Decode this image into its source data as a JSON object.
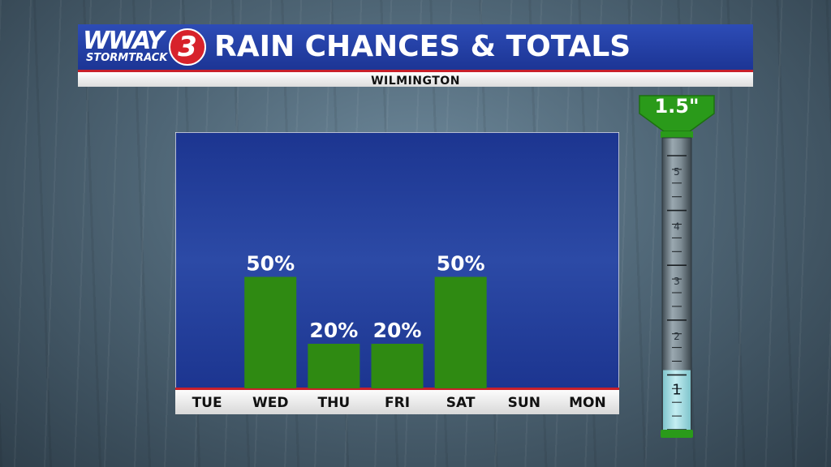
{
  "header": {
    "logo_text": "WWAY",
    "logo_number": "3",
    "logo_sub": "STORMTRACK",
    "title": "RAIN CHANCES & TOTALS",
    "location": "WILMINGTON"
  },
  "colors": {
    "header_blue": "#2540a8",
    "chart_blue": "#1f3a96",
    "bar_green": "#2f8a12",
    "accent_red": "#c8202a",
    "gauge_green": "#2a9a1a",
    "gauge_water": "#a8dde3"
  },
  "chart_data": {
    "type": "bar",
    "title": "RAIN CHANCES & TOTALS",
    "subtitle": "WILMINGTON",
    "categories": [
      "TUE",
      "WED",
      "THU",
      "FRI",
      "SAT",
      "SUN",
      "MON"
    ],
    "values": [
      0,
      50,
      20,
      20,
      50,
      0,
      0
    ],
    "data_labels": [
      "",
      "50%",
      "20%",
      "20%",
      "50%",
      "",
      ""
    ],
    "unit": "%",
    "ylim": [
      0,
      100
    ],
    "grid": false,
    "legend": "none"
  },
  "gauge": {
    "label": "1.5\"",
    "value": 1.5,
    "range": [
      0,
      5
    ],
    "ticks": [
      "1",
      "2",
      "3",
      "4",
      "5"
    ]
  }
}
